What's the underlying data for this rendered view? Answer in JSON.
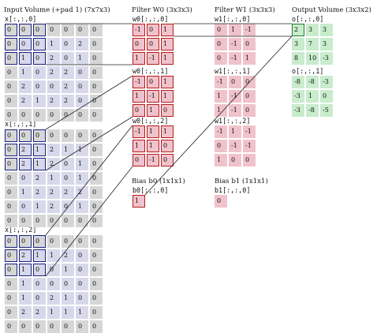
{
  "headers": {
    "input": "Input Volume (+pad 1) (7x7x3)",
    "filter0": "Filter W0 (3x3x3)",
    "filter1": "Filter W1 (3x3x3)",
    "output": "Output Volume (3x3x2)",
    "bias0": "Bias b0 (1x1x1)",
    "bias1": "Bias b1 (1x1x1)"
  },
  "labels": {
    "x0": "x[:,:,0]",
    "x1": "x[:,:,1]",
    "x2": "x[:,:,2]",
    "w00": "w0[:,:,0]",
    "w01": "w0[:,:,1]",
    "w02": "w0[:,:,2]",
    "w10": "w1[:,:,0]",
    "w11": "w1[:,:,1]",
    "w12": "w1[:,:,2]",
    "o0": "o[:,:,0]",
    "o1": "o[:,:,1]",
    "b0": "b0[:,:,0]",
    "b1": "b1[:,:,0]"
  },
  "input": [
    [
      [
        0,
        0,
        0,
        0,
        0,
        0,
        0
      ],
      [
        0,
        0,
        0,
        1,
        0,
        2,
        0
      ],
      [
        0,
        1,
        0,
        2,
        0,
        1,
        0
      ],
      [
        0,
        1,
        0,
        2,
        2,
        0,
        0
      ],
      [
        0,
        2,
        0,
        0,
        2,
        0,
        0
      ],
      [
        0,
        2,
        1,
        2,
        2,
        0,
        0
      ],
      [
        0,
        0,
        0,
        0,
        0,
        0,
        0
      ]
    ],
    [
      [
        0,
        0,
        0,
        0,
        0,
        0,
        0
      ],
      [
        0,
        2,
        1,
        2,
        1,
        1,
        0
      ],
      [
        0,
        2,
        1,
        2,
        0,
        1,
        0
      ],
      [
        0,
        0,
        2,
        1,
        0,
        1,
        0
      ],
      [
        0,
        1,
        2,
        2,
        2,
        2,
        0
      ],
      [
        0,
        0,
        1,
        2,
        0,
        1,
        0
      ],
      [
        0,
        0,
        0,
        0,
        0,
        0,
        0
      ]
    ],
    [
      [
        0,
        0,
        0,
        0,
        0,
        0,
        0
      ],
      [
        0,
        2,
        1,
        1,
        2,
        0,
        0
      ],
      [
        0,
        1,
        0,
        0,
        1,
        0,
        0
      ],
      [
        0,
        1,
        0,
        0,
        0,
        0,
        0
      ],
      [
        0,
        1,
        0,
        2,
        1,
        0,
        0
      ],
      [
        0,
        2,
        2,
        1,
        1,
        1,
        0
      ],
      [
        0,
        0,
        0,
        0,
        0,
        0,
        0
      ]
    ]
  ],
  "w0": [
    [
      [
        "-1",
        "0",
        "1"
      ],
      [
        "0",
        "0",
        "1"
      ],
      [
        "1",
        "-1",
        "1"
      ]
    ],
    [
      [
        "-1",
        "0",
        "1"
      ],
      [
        "1",
        "-1",
        "1"
      ],
      [
        "0",
        "1",
        "0"
      ]
    ],
    [
      [
        "-1",
        "1",
        "1"
      ],
      [
        "1",
        "1",
        "0"
      ],
      [
        "0",
        "-1",
        "0"
      ]
    ]
  ],
  "w1": [
    [
      [
        "0",
        "1",
        "-1"
      ],
      [
        "0",
        "-1",
        "0"
      ],
      [
        "0",
        "-1",
        "1"
      ]
    ],
    [
      [
        "-1",
        "0",
        "0"
      ],
      [
        "1",
        "-1",
        "0"
      ],
      [
        "1",
        "-1",
        "0"
      ]
    ],
    [
      [
        "-1",
        "1",
        "-1"
      ],
      [
        "0",
        "-1",
        "-1"
      ],
      [
        "1",
        "0",
        "0"
      ]
    ]
  ],
  "b0": "1",
  "b1": "0",
  "output": [
    [
      [
        "2",
        "3",
        "3"
      ],
      [
        "3",
        "7",
        "3"
      ],
      [
        "8",
        "10",
        "-3"
      ]
    ],
    [
      [
        "-8",
        "-8",
        "-3"
      ],
      [
        "-3",
        "1",
        "0"
      ],
      [
        "-3",
        "-8",
        "-5"
      ]
    ]
  ]
}
